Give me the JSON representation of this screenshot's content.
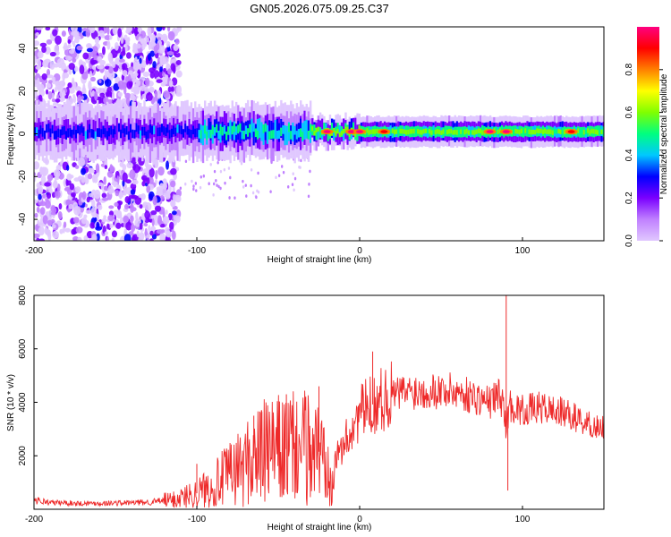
{
  "title": "GN05.2026.075.09.25.C37",
  "chart_data": [
    {
      "type": "heatmap",
      "panel": "spectrogram",
      "xlabel": "Height of straight line (km)",
      "ylabel": "Frequency (Hz)",
      "xlim": [
        -200,
        150
      ],
      "ylim": [
        -50,
        50
      ],
      "xticks": [
        -200,
        -100,
        0,
        100
      ],
      "yticks": [
        -40,
        -20,
        0,
        20,
        40
      ],
      "colorbar": {
        "label": "Normalized spectral amplitude",
        "range": [
          0,
          1
        ],
        "ticks": [
          0.0,
          0.2,
          0.4,
          0.6,
          0.8
        ],
        "colormap": [
          "#e0c8ff",
          "#c080ff",
          "#7a00ff",
          "#0000ff",
          "#00c8ff",
          "#00ff80",
          "#80ff00",
          "#ffff00",
          "#ff8000",
          "#ff0000",
          "#ff0080"
        ]
      },
      "ridge": {
        "center_hz": 1,
        "noise_region_x": [
          -200,
          -115
        ],
        "hotspots": [
          {
            "x": -20,
            "value": 0.95
          },
          {
            "x": -5,
            "value": 0.95
          },
          {
            "x": 0,
            "value": 0.95
          },
          {
            "x": 15,
            "value": 0.9
          },
          {
            "x": 80,
            "value": 0.95
          },
          {
            "x": 90,
            "value": 1.0
          },
          {
            "x": 130,
            "value": 0.9
          }
        ]
      }
    },
    {
      "type": "line",
      "panel": "snr",
      "xlabel": "Height of straight line (km)",
      "ylabel": "SNR (10 * v/v)",
      "xlim": [
        -200,
        150
      ],
      "ylim": [
        0,
        8000
      ],
      "xticks": [
        -200,
        -100,
        0,
        100
      ],
      "yticks": [
        2000,
        4000,
        6000,
        8000
      ],
      "line_color": "#ee2a2a",
      "series": [
        {
          "name": "SNR",
          "x": [
            -200,
            -190,
            -170,
            -150,
            -130,
            -115,
            -100,
            -90,
            -80,
            -70,
            -60,
            -50,
            -40,
            -30,
            -20,
            -15,
            -10,
            0,
            10,
            20,
            30,
            40,
            50,
            60,
            70,
            80,
            85,
            88,
            90,
            92,
            95,
            100,
            110,
            120,
            130,
            140,
            150
          ],
          "values": [
            350,
            250,
            220,
            230,
            260,
            350,
            600,
            900,
            1300,
            1700,
            2100,
            2200,
            2300,
            2300,
            2000,
            1800,
            2400,
            3600,
            4000,
            4300,
            4400,
            4450,
            4450,
            4400,
            4200,
            4000,
            4300,
            4000,
            3000,
            3900,
            3800,
            3700,
            3800,
            3700,
            3500,
            3200,
            3000
          ]
        }
      ],
      "spikes": [
        {
          "x": -100,
          "value": 1700
        },
        {
          "x": -65,
          "value": 3500
        },
        {
          "x": -45,
          "value": 4300
        },
        {
          "x": -25,
          "value": 4600
        },
        {
          "x": 8,
          "value": 5900
        },
        {
          "x": 90,
          "value": 8000
        },
        {
          "x": 91,
          "value": 700
        }
      ]
    }
  ]
}
